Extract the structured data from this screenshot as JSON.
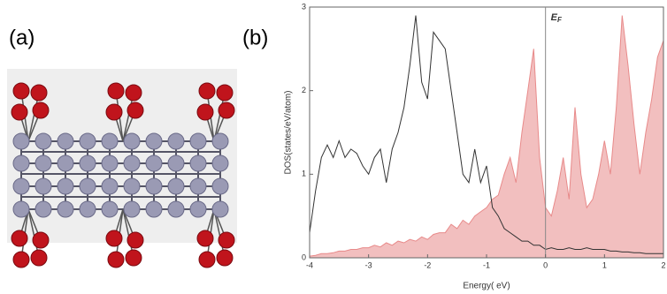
{
  "panel_labels": [
    "(a)",
    "(b)"
  ],
  "chart_data": {
    "type": "line",
    "x_label": "Energy( eV)",
    "y_label": "DOS(states/eV/atom)",
    "fermi_label": "E",
    "fermi_sub": "F",
    "fermi_level": 0,
    "x": [
      -4.0,
      -3.9,
      -3.8,
      -3.7,
      -3.6,
      -3.5,
      -3.4,
      -3.3,
      -3.2,
      -3.1,
      -3.0,
      -2.9,
      -2.8,
      -2.7,
      -2.6,
      -2.5,
      -2.4,
      -2.3,
      -2.2,
      -2.1,
      -2.0,
      -1.9,
      -1.8,
      -1.7,
      -1.6,
      -1.5,
      -1.4,
      -1.3,
      -1.2,
      -1.1,
      -1.0,
      -0.9,
      -0.8,
      -0.7,
      -0.6,
      -0.5,
      -0.4,
      -0.3,
      -0.2,
      -0.1,
      0.0,
      0.1,
      0.2,
      0.3,
      0.4,
      0.5,
      0.6,
      0.7,
      0.8,
      0.9,
      1.0,
      1.1,
      1.2,
      1.3,
      1.4,
      1.5,
      1.6,
      1.7,
      1.8,
      1.9,
      2.0
    ],
    "series": [
      {
        "color": "#333333",
        "fill": false,
        "values": [
          0.3,
          0.8,
          1.2,
          1.35,
          1.2,
          1.4,
          1.2,
          1.3,
          1.25,
          1.1,
          1.0,
          1.2,
          1.3,
          0.9,
          1.3,
          1.5,
          1.8,
          2.3,
          2.9,
          2.1,
          1.9,
          2.7,
          2.6,
          2.5,
          2.0,
          1.5,
          1.0,
          0.9,
          1.3,
          0.9,
          1.1,
          0.6,
          0.5,
          0.35,
          0.3,
          0.25,
          0.2,
          0.2,
          0.15,
          0.15,
          0.1,
          0.12,
          0.1,
          0.1,
          0.12,
          0.1,
          0.1,
          0.12,
          0.1,
          0.1,
          0.1,
          0.08,
          0.08,
          0.07,
          0.07,
          0.06,
          0.06,
          0.05,
          0.05,
          0.05,
          0.05
        ]
      },
      {
        "color": "#e88a8a",
        "fill": true,
        "values": [
          0.02,
          0.03,
          0.05,
          0.05,
          0.06,
          0.08,
          0.08,
          0.1,
          0.1,
          0.12,
          0.12,
          0.15,
          0.13,
          0.18,
          0.15,
          0.2,
          0.18,
          0.22,
          0.2,
          0.25,
          0.22,
          0.28,
          0.3,
          0.3,
          0.4,
          0.35,
          0.45,
          0.4,
          0.5,
          0.55,
          0.6,
          0.7,
          0.75,
          1.0,
          1.2,
          0.9,
          1.5,
          2.0,
          2.5,
          1.2,
          0.6,
          0.5,
          0.8,
          1.2,
          0.7,
          1.8,
          1.0,
          0.6,
          0.7,
          1.0,
          1.4,
          1.0,
          1.8,
          2.9,
          2.3,
          1.6,
          1.0,
          1.5,
          1.9,
          2.4,
          2.6
        ]
      }
    ],
    "xlim": [
      -4,
      2
    ],
    "xticks": [
      -4,
      -3,
      -2,
      -1,
      0,
      1,
      2
    ],
    "ylim": [
      0,
      3
    ],
    "yticks": [
      0,
      1,
      2,
      3
    ]
  }
}
